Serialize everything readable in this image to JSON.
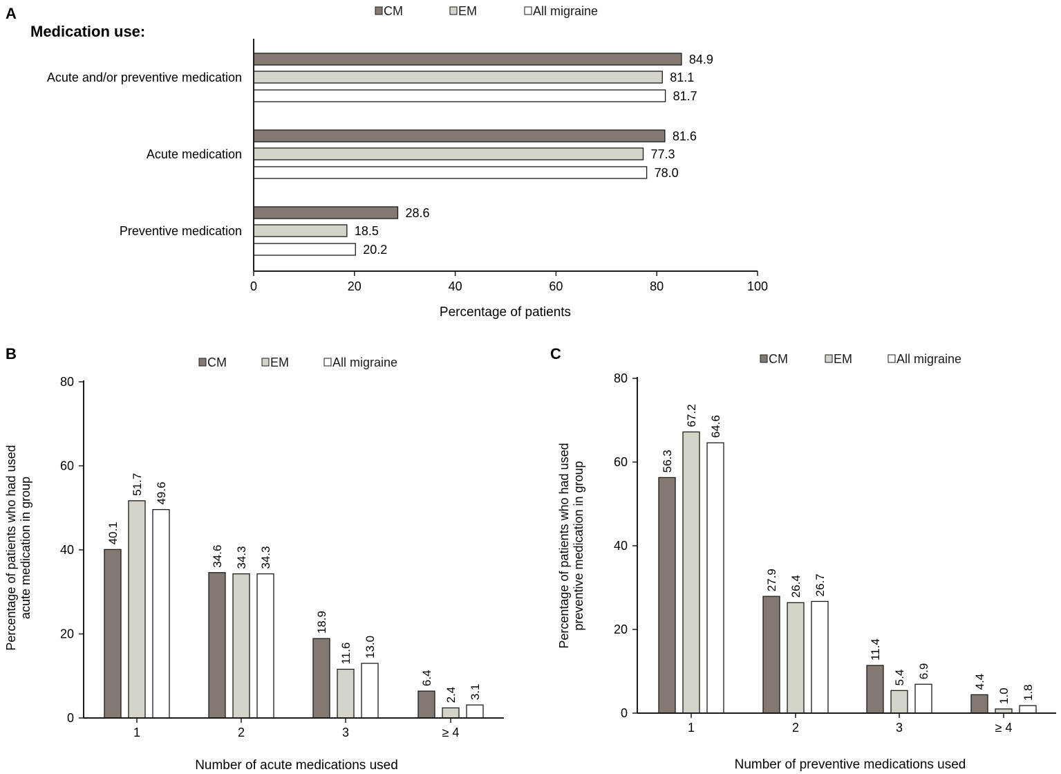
{
  "colors": {
    "cm": "#837970",
    "em": "#d6d3c9",
    "all": "#ffffff",
    "stroke": "#1a1a1a"
  },
  "panels": [
    {
      "letter": "A",
      "subtitle": "Medication use:",
      "legend": [
        "CM",
        "EM",
        "All migraine"
      ]
    },
    {
      "letter": "B",
      "legend": [
        "CM",
        "EM",
        "All migraine"
      ]
    },
    {
      "letter": "C",
      "legend": [
        "CM",
        "EM",
        "All migraine"
      ]
    }
  ],
  "chart_data": [
    {
      "type": "bar",
      "orientation": "horizontal",
      "title": "Medication use:",
      "categories": [
        "Acute and/or preventive medication",
        "Acute medication",
        "Preventive medication"
      ],
      "series": [
        {
          "name": "CM",
          "values": [
            84.9,
            81.6,
            28.6
          ],
          "labels": [
            "84.9",
            "81.6",
            "28.6"
          ]
        },
        {
          "name": "EM",
          "values": [
            81.1,
            77.3,
            18.5
          ],
          "labels": [
            "81.1",
            "77.3",
            "18.5"
          ]
        },
        {
          "name": "All migraine",
          "values": [
            81.7,
            78.0,
            20.2
          ],
          "labels": [
            "81.7",
            "78.0",
            "20.2"
          ]
        }
      ],
      "xlabel": "Percentage of patients",
      "ylabel": "",
      "xlim": [
        0,
        100
      ],
      "ticks": [
        "0",
        "20",
        "40",
        "60",
        "80",
        "100"
      ],
      "legend_position": "top",
      "grid": false
    },
    {
      "type": "bar",
      "orientation": "vertical",
      "categories": [
        "1",
        "2",
        "3",
        "≥ 4"
      ],
      "series": [
        {
          "name": "CM",
          "values": [
            40.1,
            34.6,
            18.9,
            6.4
          ],
          "labels": [
            "40.1",
            "34.6",
            "18.9",
            "6.4"
          ]
        },
        {
          "name": "EM",
          "values": [
            51.7,
            34.3,
            11.6,
            2.4
          ],
          "labels": [
            "51.7",
            "34.3",
            "11.6",
            "2.4"
          ]
        },
        {
          "name": "All migraine",
          "values": [
            49.6,
            34.3,
            13.0,
            3.1
          ],
          "labels": [
            "49.6",
            "34.3",
            "13.0",
            "3.1"
          ]
        }
      ],
      "xlabel": "Number of acute medications used",
      "ylabel_lines": [
        "Percentage of patients who had used",
        "acute medication in group"
      ],
      "ylim": [
        0,
        80
      ],
      "ticks": [
        "0",
        "20",
        "40",
        "60",
        "80"
      ],
      "legend_position": "top",
      "grid": false
    },
    {
      "type": "bar",
      "orientation": "vertical",
      "categories": [
        "1",
        "2",
        "3",
        "≥ 4"
      ],
      "series": [
        {
          "name": "CM",
          "values": [
            56.3,
            27.9,
            11.4,
            4.4
          ],
          "labels": [
            "56.3",
            "27.9",
            "11.4",
            "4.4"
          ]
        },
        {
          "name": "EM",
          "values": [
            67.2,
            26.4,
            5.4,
            1.0
          ],
          "labels": [
            "67.2",
            "26.4",
            "5.4",
            "1.0"
          ]
        },
        {
          "name": "All migraine",
          "values": [
            64.6,
            26.7,
            6.9,
            1.8
          ],
          "labels": [
            "64.6",
            "26.7",
            "6.9",
            "1.8"
          ]
        }
      ],
      "xlabel": "Number of preventive medications used",
      "ylabel_lines": [
        "Percentage of patients who had used",
        "preventive medication in group"
      ],
      "ylim": [
        0,
        80
      ],
      "ticks": [
        "0",
        "20",
        "40",
        "60",
        "80"
      ],
      "legend_position": "top",
      "grid": false
    }
  ]
}
